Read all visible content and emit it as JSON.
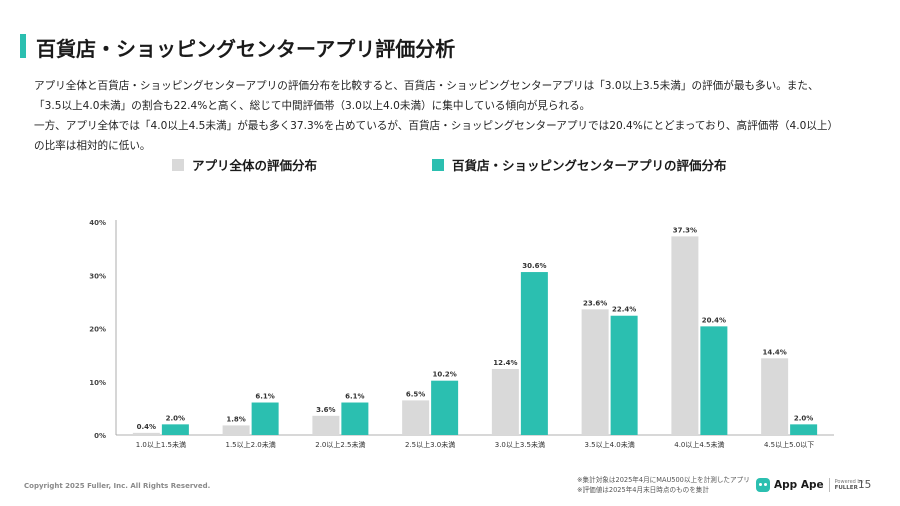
{
  "title": "百貨店・ショッピングセンターアプリ評価分析",
  "description": [
    "アプリ全体と百貨店・ショッピングセンターアプリの評価分布を比較すると、百貨店・ショッピングセンターアプリは「3.0以上3.5未満」の評価が最も多い。また、",
    "「3.5以上4.0未満」の割合も22.4%と高く、総じて中間評価帯（3.0以上4.0未満）に集中している傾向が見られる。",
    "一方、アプリ全体では「4.0以上4.5未満」が最も多く37.3%を占めているが、百貨店・ショッピングセンターアプリでは20.4%にとどまっており、高評価帯（4.0以上）",
    "の比率は相対的に低い。"
  ],
  "legend": {
    "all_apps": "アプリ全体の評価分布",
    "dept_apps": "百貨店・ショッピングセンターアプリの評価分布"
  },
  "colors": {
    "all_apps": "#d9d9d9",
    "dept_apps": "#2bbfb0",
    "accent": "#2bbfb0"
  },
  "chart_data": {
    "type": "bar",
    "categories": [
      "1.0以上1.5未満",
      "1.5以上2.0未満",
      "2.0以上2.5未満",
      "2.5以上3.0未満",
      "3.0以上3.5未満",
      "3.5以上4.0未満",
      "4.0以上4.5未満",
      "4.5以上5.0以下"
    ],
    "series": [
      {
        "name": "アプリ全体の評価分布",
        "values": [
          0.4,
          1.8,
          3.6,
          6.5,
          12.4,
          23.6,
          37.3,
          14.4
        ],
        "labels": [
          "0.4%",
          "1.8%",
          "3.6%",
          "6.5%",
          "12.4%",
          "23.6%",
          "37.3%",
          "14.4%"
        ]
      },
      {
        "name": "百貨店・ショッピングセンターアプリの評価分布",
        "values": [
          2.0,
          6.1,
          6.1,
          10.2,
          30.6,
          22.4,
          20.4,
          2.0
        ],
        "labels": [
          "2.0%",
          "6.1%",
          "6.1%",
          "10.2%",
          "30.6%",
          "22.4%",
          "20.4%",
          "2.0%"
        ]
      }
    ],
    "ylim": [
      0,
      40
    ],
    "yticks": [
      0,
      10,
      20,
      30,
      40
    ],
    "ytick_labels": [
      "0%",
      "10%",
      "20%",
      "30%",
      "40%"
    ],
    "grid": false,
    "legend_position": "top-left"
  },
  "footer": {
    "copyright": "Copyright 2025 Fuller, Inc. All Rights Reserved.",
    "notes": [
      "※集計対象は2025年4月にMAU500以上を計測したアプリ",
      "※評価値は2025年4月末日時点のものを集計"
    ],
    "brand": "App Ape",
    "brand_powered": "Powered by",
    "brand_company": "FULLER",
    "page_number": "15"
  }
}
